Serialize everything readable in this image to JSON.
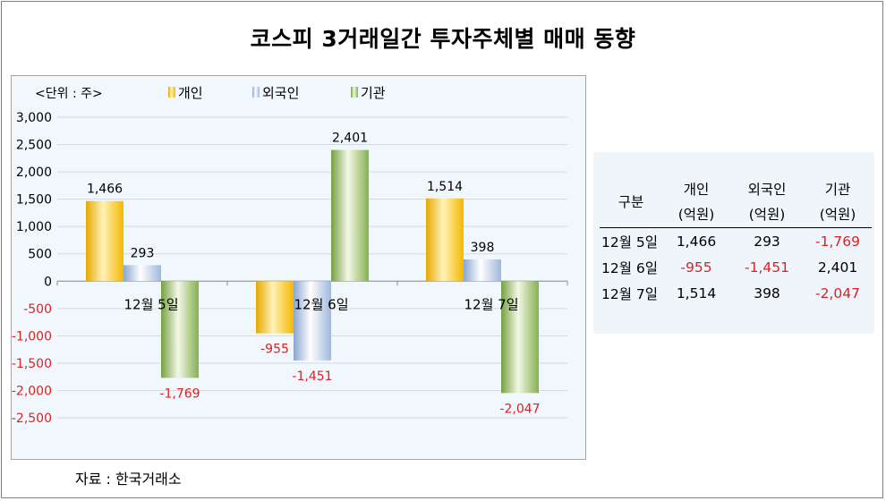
{
  "title": "코스피 3거래일간 투자주체별 매매 동향",
  "source": "자료 : 한국거래소",
  "chart_data": {
    "type": "bar",
    "unit_label": "<단위 : 주>",
    "categories": [
      "12월 5일",
      "12월 6일",
      "12월 7일"
    ],
    "series": [
      {
        "name": "개인",
        "values": [
          1466,
          -955,
          1514
        ],
        "labels": [
          "1,466",
          "-955",
          "1,514"
        ]
      },
      {
        "name": "외국인",
        "values": [
          293,
          -1451,
          398
        ],
        "labels": [
          "293",
          "-1,451",
          "398"
        ]
      },
      {
        "name": "기관",
        "values": [
          -1769,
          2401,
          -2047
        ],
        "labels": [
          "-1,769",
          "2,401",
          "-2,047"
        ]
      }
    ],
    "ylim": [
      -2500,
      3000
    ],
    "yticks": [
      3000,
      2500,
      2000,
      1500,
      1000,
      500,
      0,
      -500,
      -1000,
      -1500,
      -2000,
      -2500
    ],
    "yticklabels": [
      "3,000",
      "2,500",
      "2,000",
      "1,500",
      "1,000",
      "500",
      "0",
      "-500",
      "-1,000",
      "-1,500",
      "-2,000",
      "-2,500"
    ],
    "grid": true,
    "legend_position": "top",
    "colors": {
      "개인": "#ffc000",
      "외국인": "#a6bfe0",
      "기관": "#8fb95a",
      "negative_label": "#e02020",
      "positive_label": "#000000"
    }
  },
  "table": {
    "headers": [
      {
        "top": "구분",
        "bottom": ""
      },
      {
        "top": "개인",
        "bottom": "(억원)"
      },
      {
        "top": "외국인",
        "bottom": "(억원)"
      },
      {
        "top": "기관",
        "bottom": "(억원)"
      }
    ],
    "rows": [
      {
        "label": "12월 5일",
        "values": [
          "1,466",
          "293",
          "-1,769"
        ]
      },
      {
        "label": "12월 6일",
        "values": [
          "-955",
          "-1,451",
          "2,401"
        ]
      },
      {
        "label": "12월 7일",
        "values": [
          "1,514",
          "398",
          "-2,047"
        ]
      }
    ]
  }
}
